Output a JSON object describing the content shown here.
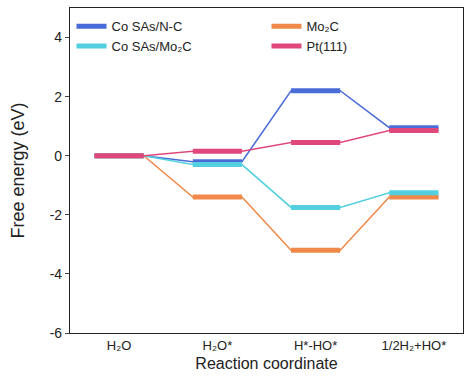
{
  "chart_data": {
    "type": "line",
    "x_label": "Reaction coordinate",
    "y_label": "Free energy (eV)",
    "categories": [
      "H₂O",
      "H₂O*",
      "H*-HO*",
      "1/2H₂+HO*"
    ],
    "series": [
      {
        "name": "Co SAs/N-C",
        "color": "#4a6cd8",
        "values": [
          0,
          -0.2,
          2.2,
          0.95
        ]
      },
      {
        "name": "Mo₂C",
        "color": "#f0894a",
        "values": [
          0,
          -1.4,
          -3.2,
          -1.4
        ]
      },
      {
        "name": "Co SAs/Mo₂C",
        "color": "#52d0df",
        "values": [
          0,
          -0.3,
          -1.75,
          -1.25
        ]
      },
      {
        "name": "Pt(111)",
        "color": "#e0487c",
        "values": [
          0,
          0.15,
          0.45,
          0.85
        ]
      }
    ],
    "ylim": [
      -6,
      5
    ],
    "yticks": [
      -6,
      -4,
      -2,
      0,
      2,
      4
    ],
    "grid": false,
    "legend": "top"
  }
}
